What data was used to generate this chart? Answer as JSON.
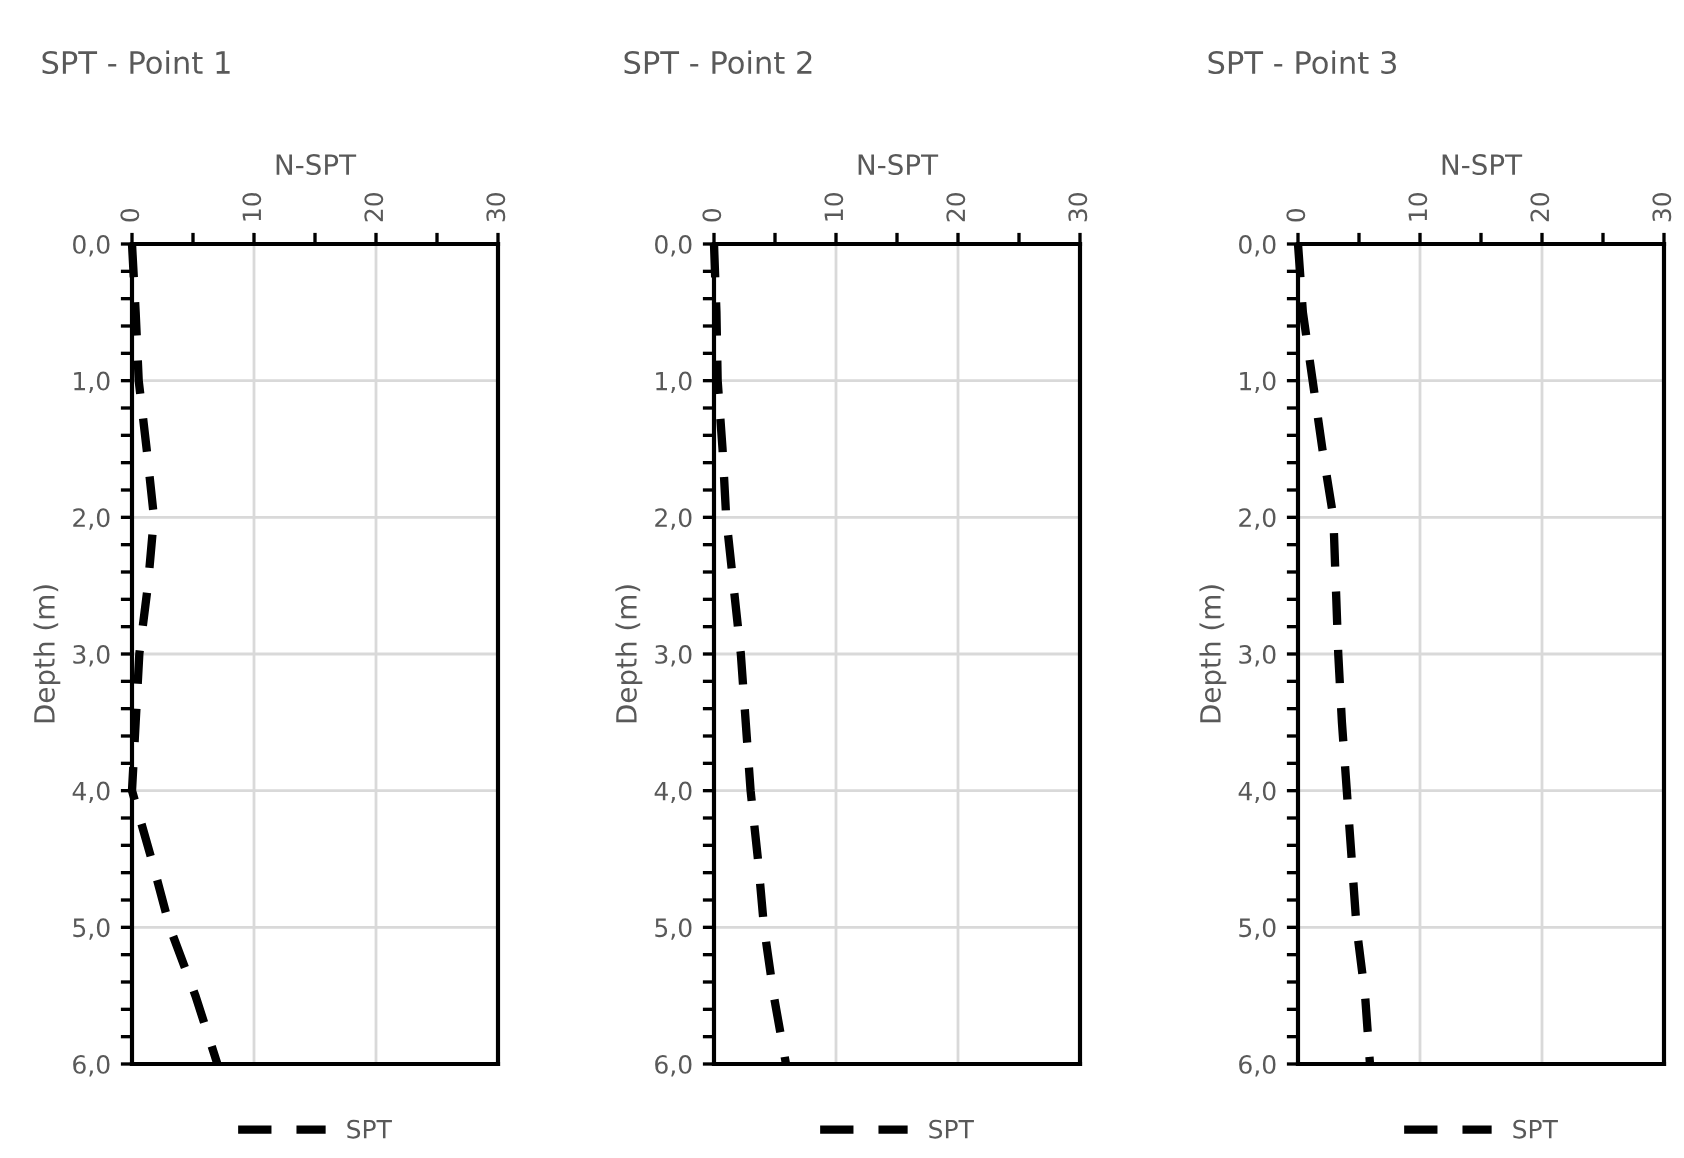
{
  "chart_data": [
    {
      "type": "line",
      "title": "SPT - Point 1",
      "xlabel": "N-SPT",
      "ylabel": "Depth (m)",
      "xlim": [
        0,
        30
      ],
      "ylim": [
        6,
        0
      ],
      "xticks": [
        0,
        {
          "value": 5,
          "label": null
        },
        10,
        {
          "value": 15,
          "label": null
        },
        20,
        {
          "value": 25,
          "label": null
        },
        30
      ],
      "yticks": [
        {
          "value": 0,
          "label": "0,0"
        },
        {
          "value": 0.2,
          "label": null
        },
        {
          "value": 0.4,
          "label": null
        },
        {
          "value": 0.6,
          "label": null
        },
        {
          "value": 0.8,
          "label": null
        },
        {
          "value": 1,
          "label": "1,0"
        },
        {
          "value": 1.2,
          "label": null
        },
        {
          "value": 1.4,
          "label": null
        },
        {
          "value": 1.6,
          "label": null
        },
        {
          "value": 1.8,
          "label": null
        },
        {
          "value": 2,
          "label": "2,0"
        },
        {
          "value": 2.2,
          "label": null
        },
        {
          "value": 2.4,
          "label": null
        },
        {
          "value": 2.6,
          "label": null
        },
        {
          "value": 2.8,
          "label": null
        },
        {
          "value": 3,
          "label": "3,0"
        },
        {
          "value": 3.2,
          "label": null
        },
        {
          "value": 3.4,
          "label": null
        },
        {
          "value": 3.6,
          "label": null
        },
        {
          "value": 3.8,
          "label": null
        },
        {
          "value": 4,
          "label": "4,0"
        },
        {
          "value": 4.2,
          "label": null
        },
        {
          "value": 4.4,
          "label": null
        },
        {
          "value": 4.6,
          "label": null
        },
        {
          "value": 4.8,
          "label": null
        },
        {
          "value": 5,
          "label": "5,0"
        },
        {
          "value": 5.2,
          "label": null
        },
        {
          "value": 5.4,
          "label": null
        },
        {
          "value": 5.6,
          "label": null
        },
        {
          "value": 5.8,
          "label": null
        },
        {
          "value": 6,
          "label": "6,0"
        }
      ],
      "grid": true,
      "legend": "bottom",
      "line_style": "dashed",
      "marker": "none",
      "series": [
        {
          "name": "SPT",
          "color": "#000000",
          "x": [
            0,
            0.3,
            0.55,
            1.2,
            1.8,
            1.3,
            0.6,
            0.3,
            0,
            1.6,
            3.1,
            5.2,
            7.0
          ],
          "values": [
            0,
            0.5,
            1,
            1.5,
            2,
            2.5,
            3,
            3.5,
            4,
            4.5,
            5,
            5.5,
            6
          ]
        }
      ]
    },
    {
      "type": "line",
      "title": "SPT - Point 2",
      "xlabel": "N-SPT",
      "ylabel": "Depth (m)",
      "xlim": [
        0,
        30
      ],
      "ylim": [
        6,
        0
      ],
      "xticks": [
        0,
        {
          "value": 5,
          "label": null
        },
        10,
        {
          "value": 15,
          "label": null
        },
        20,
        {
          "value": 25,
          "label": null
        },
        30
      ],
      "yticks": [
        {
          "value": 0,
          "label": "0,0"
        },
        {
          "value": 0.2,
          "label": null
        },
        {
          "value": 0.4,
          "label": null
        },
        {
          "value": 0.6,
          "label": null
        },
        {
          "value": 0.8,
          "label": null
        },
        {
          "value": 1,
          "label": "1,0"
        },
        {
          "value": 1.2,
          "label": null
        },
        {
          "value": 1.4,
          "label": null
        },
        {
          "value": 1.6,
          "label": null
        },
        {
          "value": 1.8,
          "label": null
        },
        {
          "value": 2,
          "label": "2,0"
        },
        {
          "value": 2.2,
          "label": null
        },
        {
          "value": 2.4,
          "label": null
        },
        {
          "value": 2.6,
          "label": null
        },
        {
          "value": 2.8,
          "label": null
        },
        {
          "value": 3,
          "label": "3,0"
        },
        {
          "value": 3.2,
          "label": null
        },
        {
          "value": 3.4,
          "label": null
        },
        {
          "value": 3.6,
          "label": null
        },
        {
          "value": 3.8,
          "label": null
        },
        {
          "value": 4,
          "label": "4,0"
        },
        {
          "value": 4.2,
          "label": null
        },
        {
          "value": 4.4,
          "label": null
        },
        {
          "value": 4.6,
          "label": null
        },
        {
          "value": 4.8,
          "label": null
        },
        {
          "value": 5,
          "label": "5,0"
        },
        {
          "value": 5.2,
          "label": null
        },
        {
          "value": 5.4,
          "label": null
        },
        {
          "value": 5.6,
          "label": null
        },
        {
          "value": 5.8,
          "label": null
        },
        {
          "value": 6,
          "label": "6,0"
        }
      ],
      "grid": true,
      "legend": "bottom",
      "line_style": "dashed",
      "marker": "none",
      "series": [
        {
          "name": "SPT",
          "color": "#000000",
          "x": [
            0,
            0.2,
            0.3,
            0.7,
            1.0,
            1.6,
            2.2,
            2.6,
            3.0,
            3.6,
            4.1,
            4.9,
            5.9
          ],
          "values": [
            0,
            0.5,
            1,
            1.5,
            2,
            2.5,
            3,
            3.5,
            4,
            4.5,
            5,
            5.5,
            6
          ]
        }
      ]
    },
    {
      "type": "line",
      "title": "SPT - Point 3",
      "xlabel": "N-SPT",
      "ylabel": "Depth (m)",
      "xlim": [
        0,
        30
      ],
      "ylim": [
        6,
        0
      ],
      "xticks": [
        0,
        {
          "value": 5,
          "label": null
        },
        10,
        {
          "value": 15,
          "label": null
        },
        20,
        {
          "value": 25,
          "label": null
        },
        30
      ],
      "yticks": [
        {
          "value": 0,
          "label": "0,0"
        },
        {
          "value": 0.2,
          "label": null
        },
        {
          "value": 0.4,
          "label": null
        },
        {
          "value": 0.6,
          "label": null
        },
        {
          "value": 0.8,
          "label": null
        },
        {
          "value": 1,
          "label": "1,0"
        },
        {
          "value": 1.2,
          "label": null
        },
        {
          "value": 1.4,
          "label": null
        },
        {
          "value": 1.6,
          "label": null
        },
        {
          "value": 1.8,
          "label": null
        },
        {
          "value": 2,
          "label": "2,0"
        },
        {
          "value": 2.2,
          "label": null
        },
        {
          "value": 2.4,
          "label": null
        },
        {
          "value": 2.6,
          "label": null
        },
        {
          "value": 2.8,
          "label": null
        },
        {
          "value": 3,
          "label": "3,0"
        },
        {
          "value": 3.2,
          "label": null
        },
        {
          "value": 3.4,
          "label": null
        },
        {
          "value": 3.6,
          "label": null
        },
        {
          "value": 3.8,
          "label": null
        },
        {
          "value": 4,
          "label": "4,0"
        },
        {
          "value": 4.2,
          "label": null
        },
        {
          "value": 4.4,
          "label": null
        },
        {
          "value": 4.6,
          "label": null
        },
        {
          "value": 4.8,
          "label": null
        },
        {
          "value": 5,
          "label": "5,0"
        },
        {
          "value": 5.2,
          "label": null
        },
        {
          "value": 5.4,
          "label": null
        },
        {
          "value": 5.6,
          "label": null
        },
        {
          "value": 5.8,
          "label": null
        },
        {
          "value": 6,
          "label": "6,0"
        }
      ],
      "grid": true,
      "legend": "bottom",
      "line_style": "dashed",
      "marker": "none",
      "series": [
        {
          "name": "SPT",
          "color": "#000000",
          "x": [
            0,
            0.4,
            1.2,
            2.0,
            2.9,
            3.1,
            3.3,
            3.6,
            4.0,
            4.4,
            4.8,
            5.5,
            5.9
          ],
          "values": [
            0,
            0.5,
            1,
            1.5,
            2,
            2.5,
            3,
            3.5,
            4,
            4.5,
            5,
            5.5,
            6
          ]
        }
      ]
    }
  ]
}
